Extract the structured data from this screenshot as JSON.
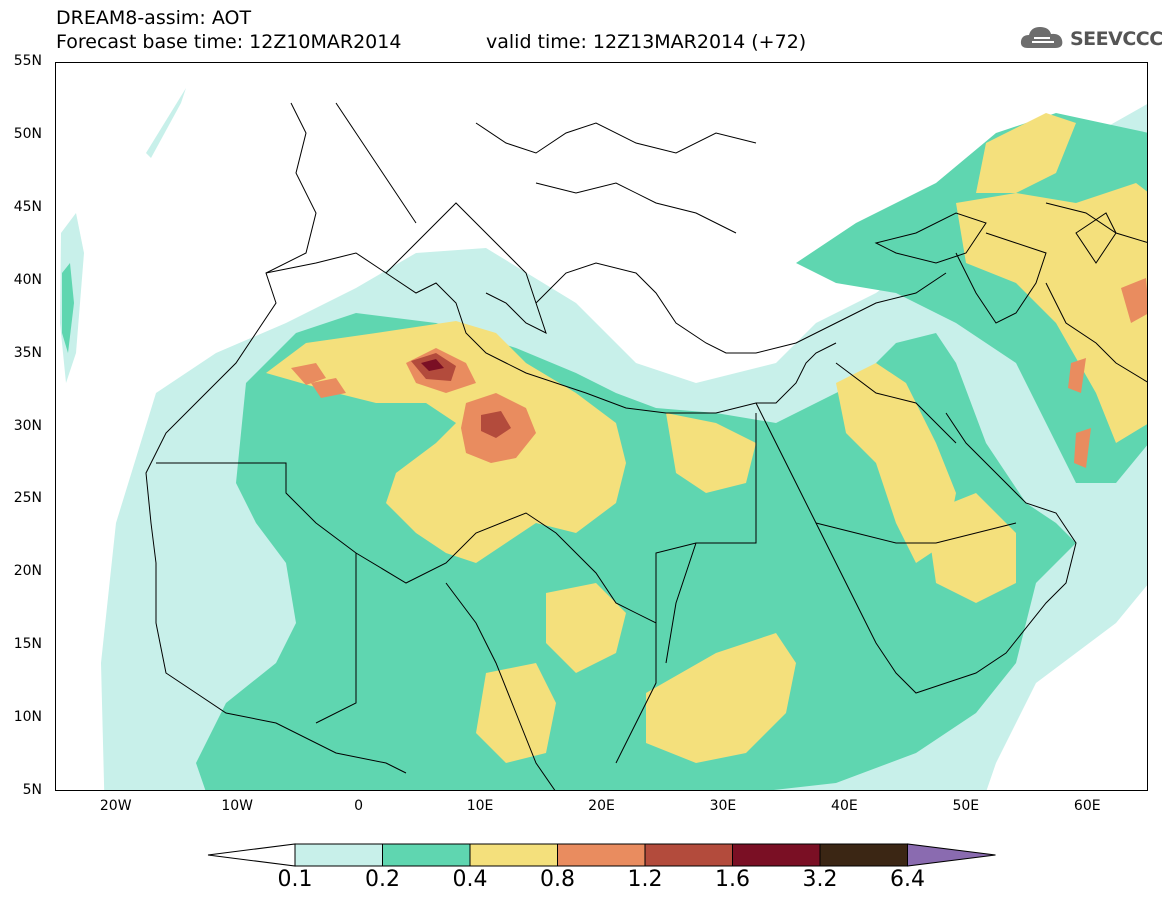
{
  "header": {
    "title": "DREAM8-assim: AOT",
    "forecast_base": "Forecast base time: 12Z10MAR2014",
    "valid_time": "valid time: 12Z13MAR2014 (+72)",
    "logo_text": "SEEVCCC"
  },
  "map": {
    "projection": "lat-lon",
    "lon_range": [
      -25,
      65
    ],
    "lat_range": [
      5,
      55
    ],
    "lat_labels": [
      "55N",
      "50N",
      "45N",
      "40N",
      "35N",
      "30N",
      "25N",
      "20N",
      "15N",
      "10N",
      "5N"
    ],
    "lon_labels": [
      "20W",
      "10W",
      "0",
      "10E",
      "20E",
      "30E",
      "40E",
      "50E",
      "60E"
    ]
  },
  "legend": {
    "levels": [
      "0.1",
      "0.2",
      "0.4",
      "0.8",
      "1.2",
      "1.6",
      "3.2",
      "6.4"
    ],
    "colors": [
      "#c8f0ea",
      "#5fd6b0",
      "#f4e07c",
      "#e98c5f",
      "#b34b3c",
      "#7a0f24",
      "#3b2614",
      "#8a6bb0"
    ]
  },
  "colors": {
    "c01": "#c8f0ea",
    "c02": "#5fd6b0",
    "c04": "#f4e07c",
    "c08": "#e98c5f",
    "c12": "#b34b3c",
    "c16": "#7a0f24"
  }
}
